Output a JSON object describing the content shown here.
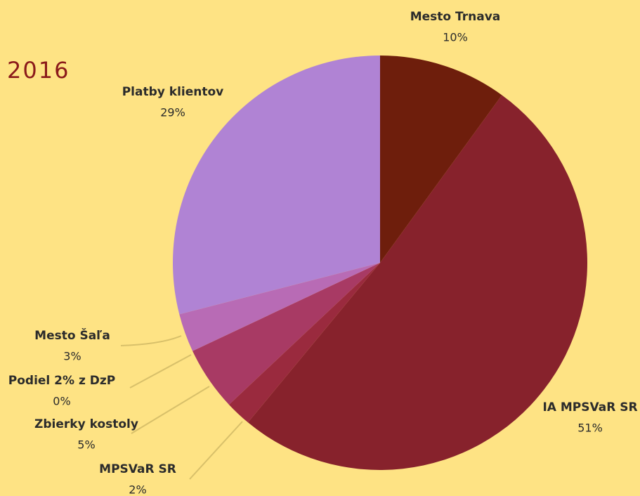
{
  "chart_data": {
    "type": "pie",
    "title": "2016",
    "categories": [
      "Mesto Trnava",
      "IA MPSVaR SR",
      "MPSVaR SR",
      "Zbierky kostoly",
      "Podiel 2% z DzP",
      "Mesto Šaľa",
      "Platby klientov"
    ],
    "values": [
      10,
      51,
      2,
      5,
      0,
      3,
      29
    ],
    "value_labels": [
      "10%",
      "51%",
      "2%",
      "5%",
      "0%",
      "3%",
      "29%"
    ],
    "colors": [
      "#6e1e0c",
      "#87222c",
      "#9a2a3e",
      "#a83a64",
      "#b0479a",
      "#b86bb5",
      "#b083d4"
    ]
  }
}
